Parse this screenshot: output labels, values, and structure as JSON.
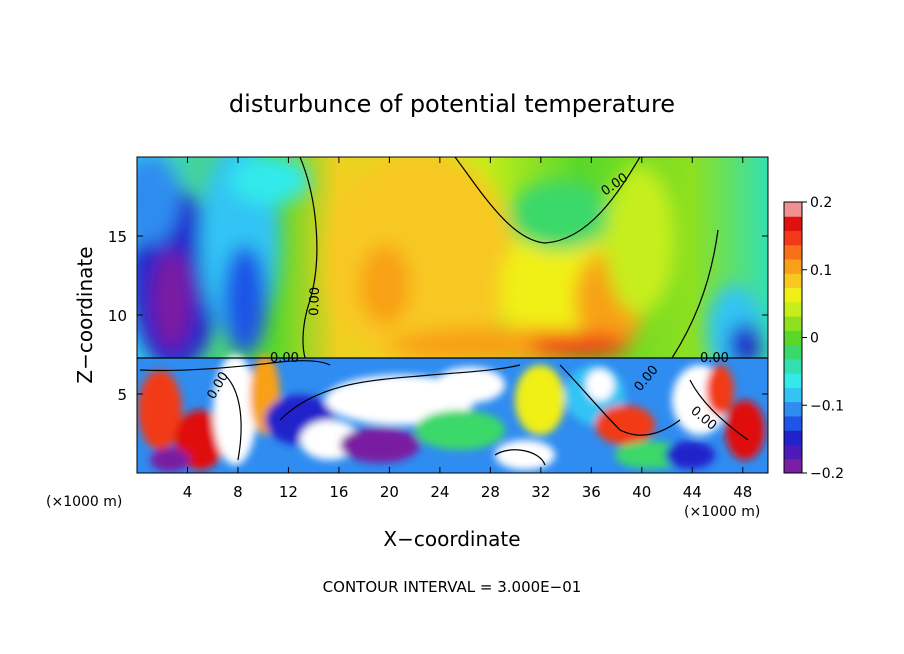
{
  "chart_data": {
    "type": "heatmap",
    "title": "disturbunce of potential temperature",
    "xlabel": "X−coordinate",
    "ylabel": "Z−coordinate",
    "x_unit_left": "(×1000 m)",
    "x_unit_right": "(×1000 m)",
    "xlim": [
      0,
      50
    ],
    "ylim": [
      0,
      20
    ],
    "x_ticks": [
      4,
      8,
      12,
      16,
      20,
      24,
      28,
      32,
      36,
      40,
      44,
      48
    ],
    "y_ticks": [
      5,
      10,
      15
    ],
    "colorbar": {
      "range": [
        -0.2,
        0.2
      ],
      "ticks": [
        -0.2,
        -0.1,
        0,
        0.1,
        0.2
      ],
      "tick_labels": [
        "−0.2",
        "−0.1",
        "0",
        "0.1",
        "0.2"
      ],
      "colors": [
        "#7a1fa2",
        "#4b1bb8",
        "#2222cc",
        "#1f55e6",
        "#2f8cf0",
        "#33c4f4",
        "#33eaea",
        "#33e0b0",
        "#3ad86a",
        "#5ad82a",
        "#8ee020",
        "#c6ee1a",
        "#f0f018",
        "#f8c820",
        "#f8a018",
        "#f87018",
        "#f23a18",
        "#e01010",
        "#f09090"
      ]
    },
    "contour_labels": [
      "0.00",
      "0.00",
      "0.00",
      "0.00",
      "0.00",
      "0.00",
      "0.00"
    ],
    "footer": "CONTOUR INTERVAL = 3.000E−01"
  }
}
